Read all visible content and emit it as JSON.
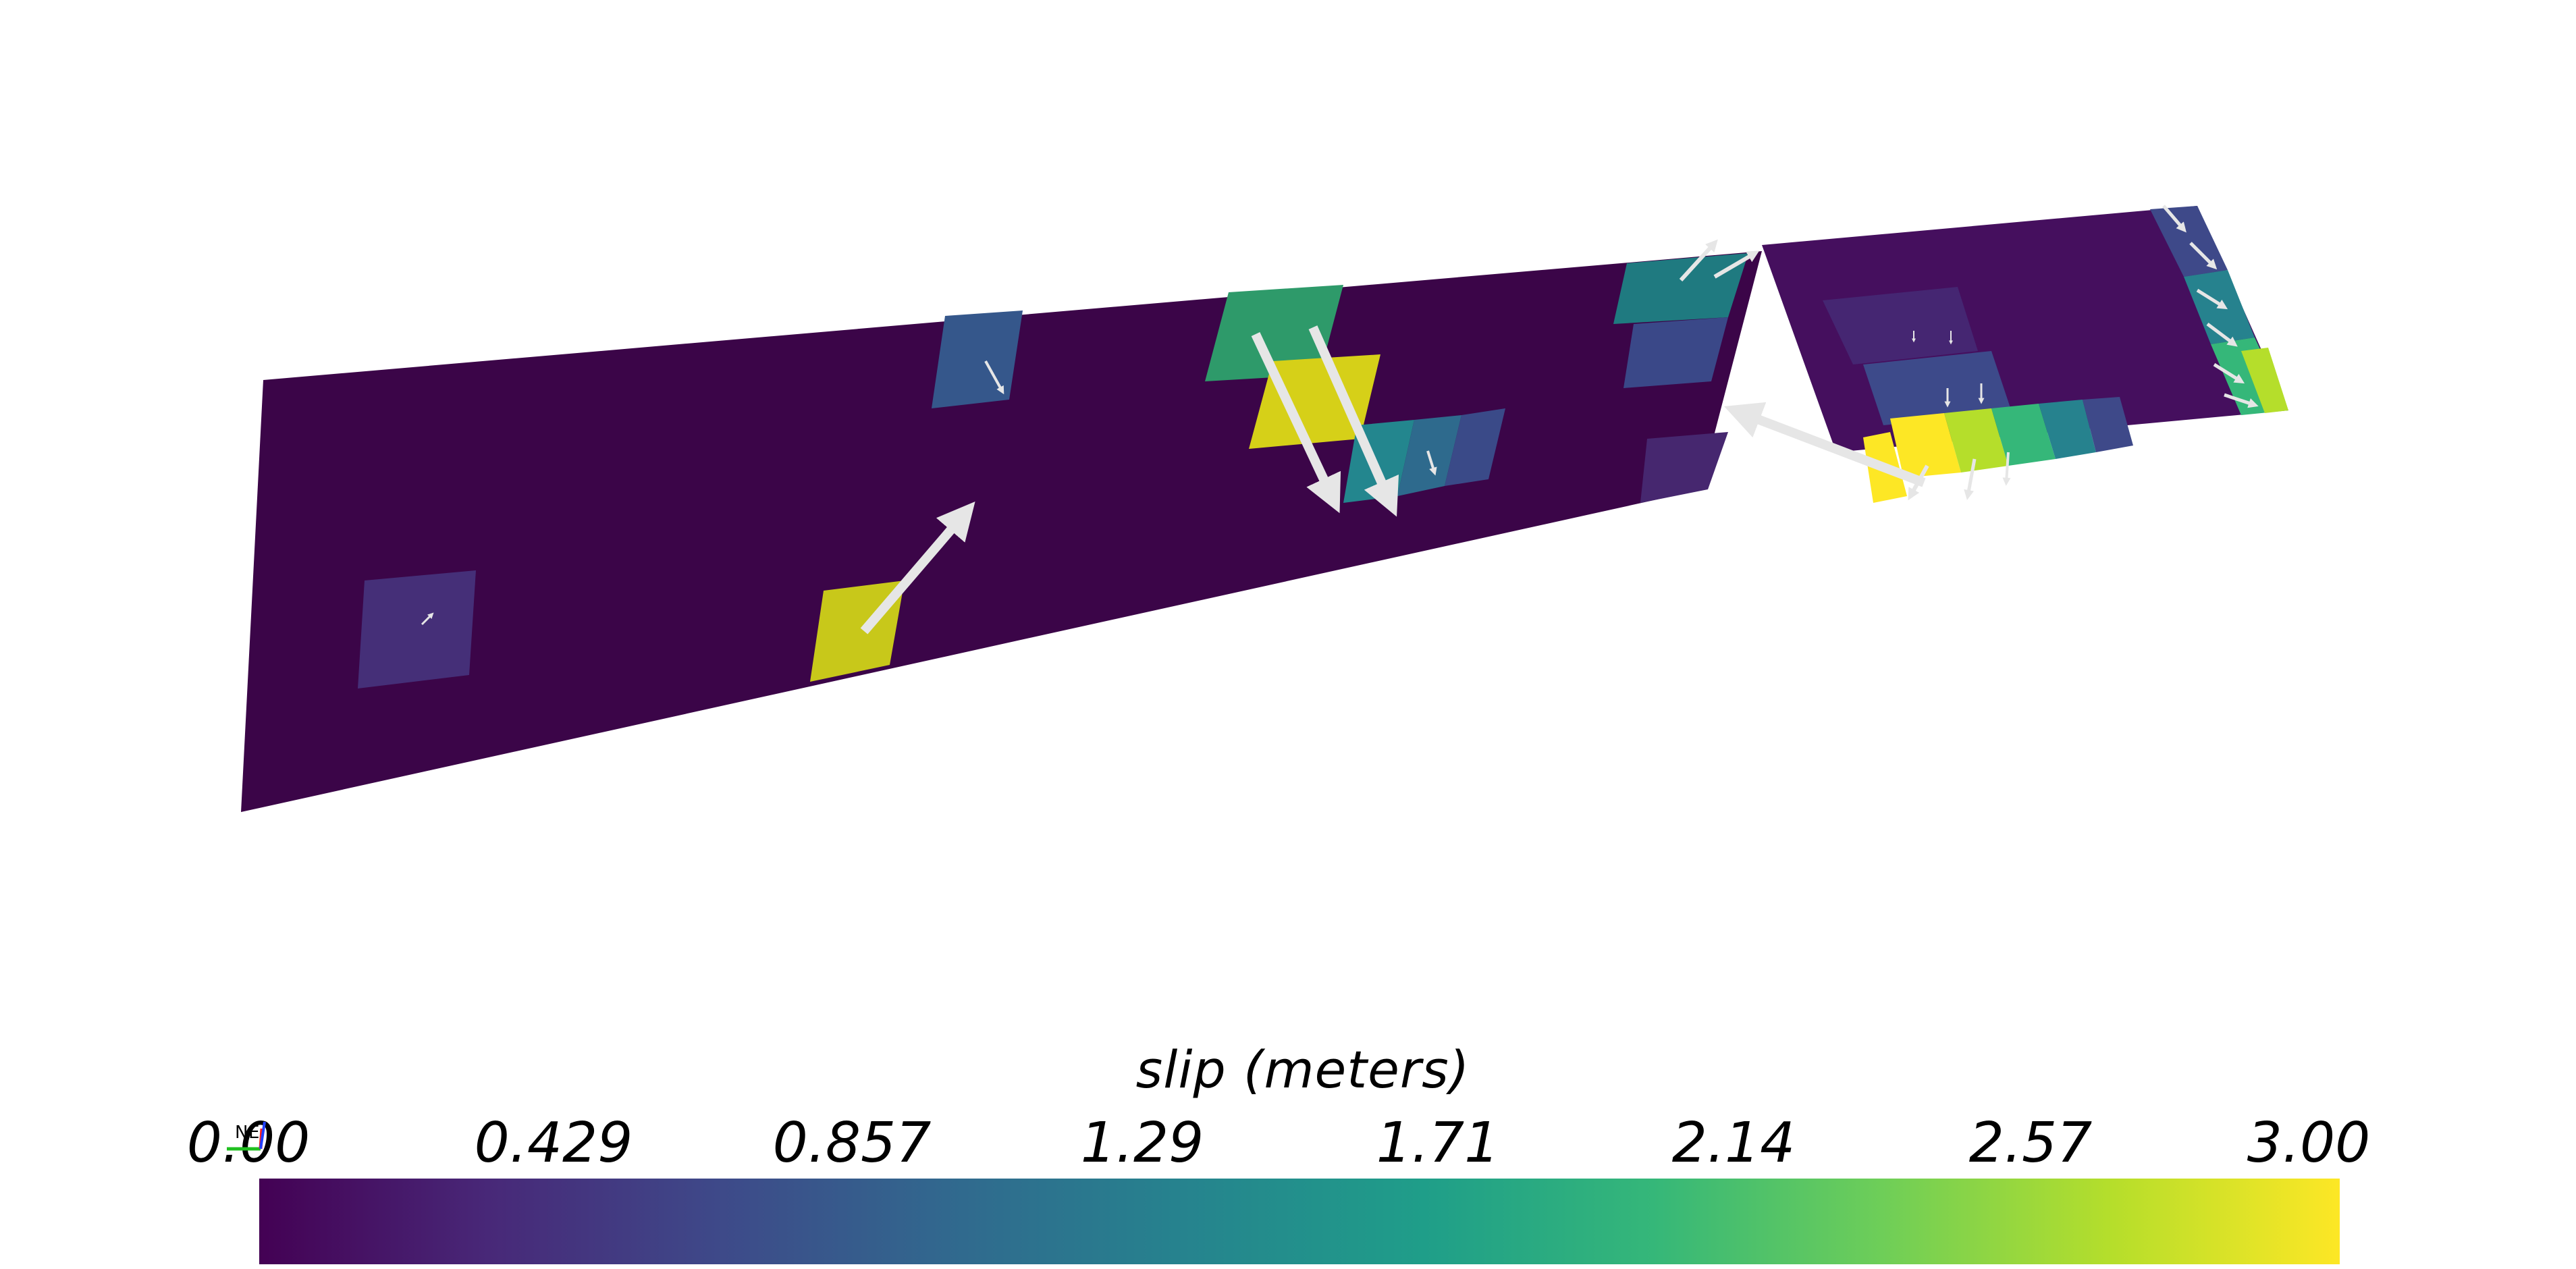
{
  "colorbar": {
    "title": "slip (meters)",
    "ticks": [
      "0.00",
      "0.429",
      "0.857",
      "1.29",
      "1.71",
      "2.14",
      "2.57",
      "3.00"
    ],
    "range": [
      0,
      3
    ],
    "colormap": "viridis",
    "colors": [
      "#440154",
      "#482878",
      "#3e4989",
      "#31688e",
      "#26828e",
      "#1f9e89",
      "#35b779",
      "#6ece58",
      "#b5de2b",
      "#fde725"
    ]
  },
  "fault_surface": {
    "background_color": "#3b0548",
    "arrow_color": "#e6e6e6"
  },
  "orientation_axes": {
    "labels": [
      "N",
      "E"
    ],
    "colors": {
      "north": "#ff2020",
      "east": "#20c020",
      "up": "#2040ff"
    }
  }
}
